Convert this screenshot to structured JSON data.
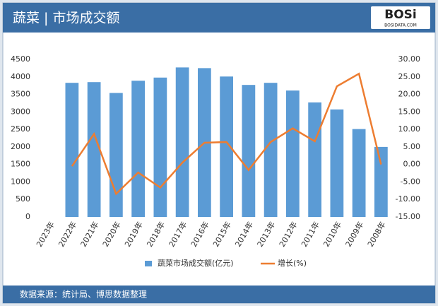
{
  "chart_data": {
    "type": "bar_line",
    "title": "蔬菜 | 市场成交额",
    "categories": [
      "2023年",
      "2022年",
      "2021年",
      "2020年",
      "2019年",
      "2018年",
      "2017年",
      "2016年",
      "2015年",
      "2014年",
      "2013年",
      "2012年",
      "2011年",
      "2010年",
      "2009年",
      "2008年"
    ],
    "series": [
      {
        "name": "蔬菜市场成交额(亿元)",
        "color": "#5b9bd5",
        "type": "bar",
        "values": [
          null,
          3830,
          3850,
          3540,
          3890,
          3980,
          4270,
          4250,
          4010,
          3770,
          3830,
          3610,
          3270,
          3070,
          2510,
          2000
        ]
      },
      {
        "name": "增长(%)",
        "color": "#ed7d31",
        "type": "line",
        "axis": "y2",
        "values": [
          null,
          -0.5,
          8.7,
          -8.4,
          -2.3,
          -6.6,
          0.5,
          6.2,
          6.4,
          -1.6,
          6.4,
          10.3,
          6.6,
          22.3,
          25.9,
          0
        ]
      }
    ],
    "ylim": [
      0,
      4500
    ],
    "yticks": [
      0,
      500,
      1000,
      1500,
      2000,
      2500,
      3000,
      3500,
      4000,
      4500
    ],
    "y2lim": [
      -15,
      30
    ],
    "y2ticks": [
      {
        "value": -15,
        "label": "-15.00"
      },
      {
        "value": -10,
        "label": "-10.00"
      },
      {
        "value": -5,
        "label": "-5.00"
      },
      {
        "value": 0,
        "label": "0.00"
      },
      {
        "value": 5,
        "label": "5.00"
      },
      {
        "value": 10,
        "label": "10.00"
      },
      {
        "value": 15,
        "label": "15.00"
      },
      {
        "value": 20,
        "label": "20.00"
      },
      {
        "value": 25,
        "label": "25.00"
      },
      {
        "value": 30,
        "label": "30.00"
      }
    ],
    "legend": "bottom"
  },
  "logo": {
    "text": "BOSi",
    "subtext": "BOSIDATA.COM"
  },
  "footer": {
    "source": "数据来源：统计局、博思数据整理"
  }
}
